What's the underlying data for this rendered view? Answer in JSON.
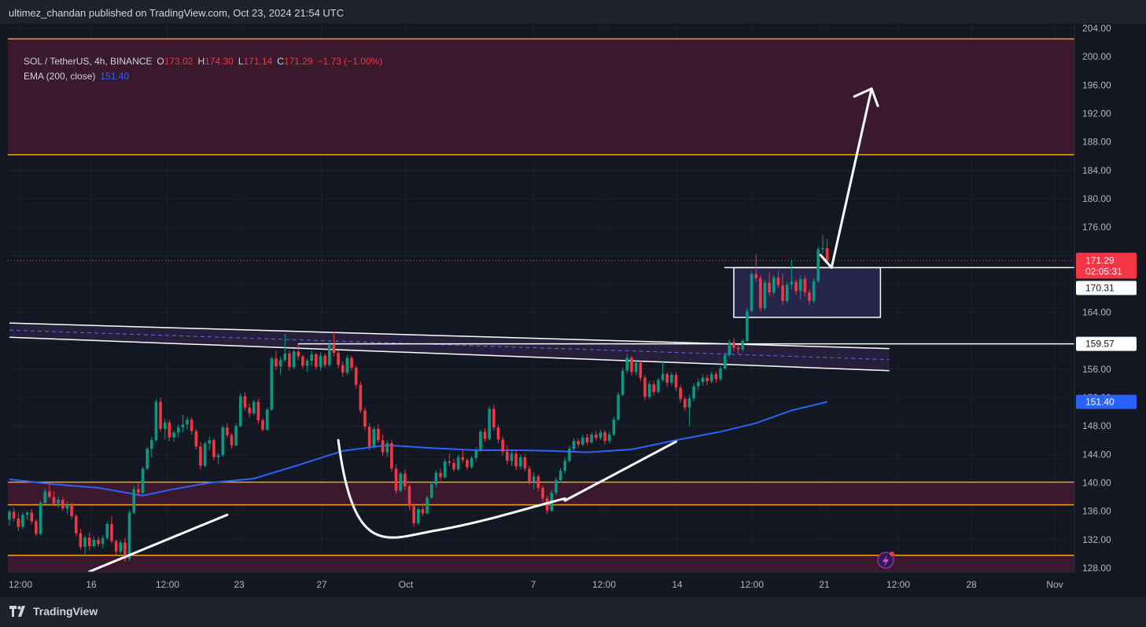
{
  "publisher_line": "ultimez_chandan published on TradingView.com, Oct 23, 2024 21:54 UTC",
  "brand": {
    "name": "TradingView",
    "logo_icon": "tradingview-logo-icon"
  },
  "legend": {
    "symbol": "SOL / TetherUS, 4h, BINANCE",
    "open_label": "O",
    "open": "173.02",
    "high_label": "H",
    "high": "174.30",
    "low_label": "L",
    "low": "171.14",
    "close_label": "C",
    "close": "171.29",
    "change": "−1.73 (−1.00%)",
    "ema_label": "EMA (200, close)",
    "ema_value": "151.40"
  },
  "colors": {
    "background": "#131722",
    "bull": "#089981",
    "bear": "#f23645",
    "ema": "#2962ff",
    "zone_fill": "#42192f",
    "zone_border": "#f7a21b",
    "annotation": "#ffffff"
  },
  "chart_data": {
    "type": "candlestick",
    "y_axis": {
      "min": 128,
      "max": 204,
      "side": "right",
      "ticks": [
        "204.00",
        "200.00",
        "196.00",
        "192.00",
        "188.00",
        "184.00",
        "180.00",
        "176.00",
        "171.29",
        "164.00",
        "160.00",
        "156.00",
        "152.00",
        "148.00",
        "144.00",
        "140.00",
        "136.00",
        "132.00",
        "128.00"
      ]
    },
    "x_axis": {
      "ticks": [
        "12:00",
        "16",
        "12:00",
        "23",
        "27",
        "Oct",
        "7",
        "12:00",
        "14",
        "12:00",
        "21",
        "12:00",
        "28",
        "Nov"
      ]
    },
    "price_labels": [
      {
        "value": 171.29,
        "text": "171.29",
        "subtext": "02:05:31",
        "color": "#f23645",
        "kind": "last-price"
      },
      {
        "value": 170.31,
        "text": "170.31",
        "color": "#ffffff",
        "kind": "line"
      },
      {
        "value": 159.57,
        "text": "159.57",
        "color": "#ffffff",
        "kind": "line"
      },
      {
        "value": 151.4,
        "text": "151.40",
        "color": "#2962ff",
        "kind": "ema"
      }
    ],
    "zones": [
      {
        "from": 186.2,
        "to": 202.5
      },
      {
        "from": 136.9,
        "to": 140.1
      },
      {
        "from": 129.8,
        "to": 127.5
      }
    ],
    "consolidation_box": {
      "from": 163.3,
      "to": 170.3,
      "start_index": 163,
      "end_index": 196
    },
    "horizontal_lines": [
      {
        "value": 170.31,
        "start_index": 163,
        "end_index": 999
      },
      {
        "value": 159.57,
        "start_index": 67,
        "end_index": 999
      }
    ],
    "channel": {
      "upper": {
        "start_index": 0,
        "start": 162.5,
        "end_index": 198,
        "end": 158.9
      },
      "lower": {
        "start_index": 0,
        "start": 160.5,
        "end_index": 198,
        "end": 155.8
      }
    },
    "trendlines": [
      {
        "start_index": 18,
        "start": 127.5,
        "end_index": 49,
        "end": 135.5
      },
      {
        "start_index": 125,
        "start": 137.5,
        "end_index": 150,
        "end": 145.8
      }
    ],
    "target_arrow": {
      "start_index": 185,
      "start": 170.3,
      "end_index": 194,
      "end": 195.5
    },
    "rounding_bottom": {
      "start_index": 74,
      "start": 146.0,
      "low_index": 96,
      "low": 133.3,
      "end_index": 125,
      "end": 137.8
    },
    "ema200": [
      {
        "i": 0,
        "v": 140.5
      },
      {
        "i": 10,
        "v": 139.8
      },
      {
        "i": 20,
        "v": 139.3
      },
      {
        "i": 30,
        "v": 138.2
      },
      {
        "i": 36,
        "v": 139.0
      },
      {
        "i": 45,
        "v": 140.0
      },
      {
        "i": 55,
        "v": 140.6
      },
      {
        "i": 65,
        "v": 142.5
      },
      {
        "i": 75,
        "v": 144.5
      },
      {
        "i": 85,
        "v": 145.3
      },
      {
        "i": 95,
        "v": 144.9
      },
      {
        "i": 105,
        "v": 144.6
      },
      {
        "i": 115,
        "v": 144.6
      },
      {
        "i": 122,
        "v": 144.5
      },
      {
        "i": 130,
        "v": 144.3
      },
      {
        "i": 140,
        "v": 144.7
      },
      {
        "i": 150,
        "v": 146.0
      },
      {
        "i": 160,
        "v": 147.2
      },
      {
        "i": 168,
        "v": 148.4
      },
      {
        "i": 176,
        "v": 150.2
      },
      {
        "i": 184,
        "v": 151.4
      }
    ],
    "candles_ohlc": [
      [
        134.8,
        136.2,
        134.0,
        135.9
      ],
      [
        135.9,
        136.5,
        134.6,
        135.0
      ],
      [
        135.0,
        135.8,
        133.2,
        133.8
      ],
      [
        133.8,
        135.9,
        133.5,
        135.5
      ],
      [
        135.5,
        136.0,
        134.8,
        135.8
      ],
      [
        135.8,
        136.3,
        134.2,
        134.6
      ],
      [
        134.6,
        134.9,
        132.5,
        132.8
      ],
      [
        132.8,
        137.5,
        132.6,
        137.2
      ],
      [
        137.2,
        139.2,
        137.0,
        138.8
      ],
      [
        138.8,
        139.8,
        137.8,
        138.0
      ],
      [
        138.0,
        138.8,
        136.7,
        137.1
      ],
      [
        137.1,
        138.1,
        136.5,
        137.6
      ],
      [
        137.6,
        138.0,
        136.1,
        136.4
      ],
      [
        136.4,
        137.4,
        135.6,
        136.9
      ],
      [
        136.9,
        137.2,
        134.9,
        135.3
      ],
      [
        135.3,
        135.6,
        132.5,
        132.9
      ],
      [
        132.9,
        133.5,
        130.6,
        131.0
      ],
      [
        131.0,
        132.6,
        129.8,
        132.3
      ],
      [
        132.3,
        133.0,
        130.5,
        131.1
      ],
      [
        131.1,
        132.5,
        130.9,
        132.0
      ],
      [
        132.0,
        132.4,
        131.0,
        131.4
      ],
      [
        131.4,
        132.6,
        130.8,
        132.2
      ],
      [
        132.2,
        134.5,
        132.0,
        134.2
      ],
      [
        134.2,
        135.3,
        131.5,
        131.8
      ],
      [
        131.8,
        132.0,
        129.8,
        130.3
      ],
      [
        130.3,
        131.9,
        130.0,
        131.6
      ],
      [
        131.6,
        132.3,
        128.9,
        129.3
      ],
      [
        129.3,
        136.2,
        129.0,
        135.8
      ],
      [
        135.8,
        139.5,
        135.6,
        139.1
      ],
      [
        139.1,
        140.0,
        138.1,
        138.6
      ],
      [
        138.6,
        142.3,
        138.4,
        142.0
      ],
      [
        142.0,
        145.1,
        141.8,
        144.8
      ],
      [
        144.8,
        146.5,
        143.6,
        146.0
      ],
      [
        146.0,
        151.8,
        145.8,
        151.4
      ],
      [
        151.4,
        152.0,
        147.2,
        147.6
      ],
      [
        147.6,
        149.0,
        146.1,
        148.5
      ],
      [
        148.5,
        148.9,
        145.9,
        146.4
      ],
      [
        146.4,
        147.4,
        145.8,
        147.1
      ],
      [
        147.1,
        148.2,
        146.4,
        147.8
      ],
      [
        147.8,
        149.6,
        147.1,
        148.2
      ],
      [
        148.2,
        149.3,
        147.5,
        148.9
      ],
      [
        148.9,
        149.2,
        146.8,
        147.3
      ],
      [
        147.3,
        147.6,
        144.7,
        145.1
      ],
      [
        145.1,
        145.7,
        141.9,
        142.4
      ],
      [
        142.4,
        145.8,
        142.2,
        145.5
      ],
      [
        145.5,
        146.5,
        144.6,
        146.0
      ],
      [
        146.0,
        146.3,
        143.2,
        143.6
      ],
      [
        143.6,
        144.2,
        142.6,
        143.9
      ],
      [
        143.9,
        148.1,
        143.6,
        147.8
      ],
      [
        147.8,
        148.4,
        146.3,
        146.7
      ],
      [
        146.7,
        147.0,
        144.8,
        145.3
      ],
      [
        145.3,
        148.4,
        145.1,
        148.0
      ],
      [
        148.0,
        152.6,
        147.8,
        152.2
      ],
      [
        152.2,
        152.8,
        150.1,
        150.6
      ],
      [
        150.6,
        151.2,
        149.2,
        149.8
      ],
      [
        149.8,
        151.7,
        149.5,
        151.4
      ],
      [
        151.4,
        151.8,
        148.3,
        148.8
      ],
      [
        148.8,
        149.1,
        147.2,
        147.5
      ],
      [
        147.5,
        150.6,
        147.3,
        150.3
      ],
      [
        150.3,
        157.8,
        150.1,
        157.5
      ],
      [
        157.5,
        158.6,
        155.9,
        156.4
      ],
      [
        156.4,
        157.8,
        155.2,
        157.3
      ],
      [
        157.3,
        161.0,
        157.0,
        158.2
      ],
      [
        158.2,
        158.6,
        155.8,
        156.3
      ],
      [
        156.3,
        158.8,
        156.0,
        158.5
      ],
      [
        158.5,
        159.6,
        157.3,
        157.8
      ],
      [
        157.8,
        158.0,
        156.1,
        156.5
      ],
      [
        156.5,
        157.5,
        155.6,
        157.2
      ],
      [
        157.2,
        158.6,
        156.5,
        158.1
      ],
      [
        158.1,
        158.3,
        156.0,
        156.3
      ],
      [
        156.3,
        158.4,
        155.8,
        157.9
      ],
      [
        157.9,
        158.2,
        156.2,
        156.6
      ],
      [
        156.6,
        159.8,
        156.3,
        159.4
      ],
      [
        159.4,
        161.2,
        157.8,
        158.3
      ],
      [
        158.3,
        158.6,
        156.1,
        156.6
      ],
      [
        156.6,
        157.1,
        154.9,
        155.5
      ],
      [
        155.5,
        158.0,
        155.2,
        157.6
      ],
      [
        157.6,
        157.9,
        155.8,
        156.2
      ],
      [
        156.2,
        156.5,
        153.3,
        153.8
      ],
      [
        153.8,
        154.2,
        149.8,
        150.2
      ],
      [
        150.2,
        150.6,
        147.4,
        147.9
      ],
      [
        147.9,
        148.4,
        144.6,
        145.1
      ],
      [
        145.1,
        147.9,
        144.9,
        147.6
      ],
      [
        147.6,
        148.2,
        145.6,
        146.0
      ],
      [
        146.0,
        146.8,
        143.8,
        144.3
      ],
      [
        144.3,
        146.0,
        143.6,
        145.6
      ],
      [
        145.6,
        146.1,
        141.6,
        142.0
      ],
      [
        142.0,
        142.6,
        138.4,
        138.9
      ],
      [
        138.9,
        141.6,
        138.6,
        141.3
      ],
      [
        141.3,
        141.9,
        139.0,
        139.5
      ],
      [
        139.5,
        139.8,
        136.2,
        136.7
      ],
      [
        136.7,
        137.0,
        133.8,
        134.3
      ],
      [
        134.3,
        136.6,
        134.0,
        136.3
      ],
      [
        136.3,
        137.1,
        135.3,
        135.7
      ],
      [
        135.7,
        138.2,
        135.5,
        137.9
      ],
      [
        137.9,
        140.2,
        137.7,
        139.8
      ],
      [
        139.8,
        141.8,
        139.3,
        141.4
      ],
      [
        141.4,
        142.0,
        140.3,
        140.8
      ],
      [
        140.8,
        143.4,
        140.6,
        143.0
      ],
      [
        143.0,
        144.1,
        142.4,
        142.8
      ],
      [
        142.8,
        143.4,
        141.6,
        141.9
      ],
      [
        141.9,
        143.9,
        141.7,
        143.6
      ],
      [
        143.6,
        144.6,
        142.8,
        143.2
      ],
      [
        143.2,
        143.5,
        141.8,
        142.2
      ],
      [
        142.2,
        143.8,
        142.0,
        143.5
      ],
      [
        143.5,
        145.0,
        143.0,
        144.6
      ],
      [
        144.6,
        147.5,
        144.4,
        147.2
      ],
      [
        147.2,
        147.7,
        145.8,
        146.2
      ],
      [
        146.2,
        150.8,
        146.0,
        150.4
      ],
      [
        150.4,
        151.0,
        147.3,
        147.8
      ],
      [
        147.8,
        148.2,
        145.6,
        146.1
      ],
      [
        146.1,
        146.5,
        143.8,
        144.4
      ],
      [
        144.4,
        145.3,
        142.6,
        143.1
      ],
      [
        143.1,
        144.5,
        142.4,
        144.1
      ],
      [
        144.1,
        144.6,
        141.8,
        142.3
      ],
      [
        142.3,
        144.0,
        141.9,
        143.6
      ],
      [
        143.6,
        144.0,
        141.6,
        142.0
      ],
      [
        142.0,
        142.4,
        139.7,
        140.2
      ],
      [
        140.2,
        141.5,
        139.1,
        140.9
      ],
      [
        140.9,
        141.2,
        138.8,
        139.3
      ],
      [
        139.3,
        139.6,
        137.3,
        137.8
      ],
      [
        137.8,
        138.2,
        135.6,
        136.1
      ],
      [
        136.1,
        139.0,
        135.9,
        138.6
      ],
      [
        138.6,
        140.8,
        138.3,
        140.4
      ],
      [
        140.4,
        142.1,
        140.0,
        141.7
      ],
      [
        141.7,
        143.6,
        141.3,
        143.1
      ],
      [
        143.1,
        145.2,
        142.8,
        144.8
      ],
      [
        144.8,
        146.3,
        144.3,
        145.9
      ],
      [
        145.9,
        146.2,
        144.9,
        145.4
      ],
      [
        145.4,
        146.8,
        145.1,
        146.4
      ],
      [
        146.4,
        146.9,
        145.3,
        145.7
      ],
      [
        145.7,
        147.1,
        145.5,
        146.8
      ],
      [
        146.8,
        147.3,
        145.9,
        146.3
      ],
      [
        146.3,
        147.5,
        146.0,
        147.1
      ],
      [
        147.1,
        147.4,
        145.4,
        145.9
      ],
      [
        145.9,
        147.2,
        145.6,
        146.8
      ],
      [
        146.8,
        149.3,
        146.6,
        148.9
      ],
      [
        148.9,
        152.8,
        148.7,
        152.4
      ],
      [
        152.4,
        156.2,
        152.2,
        155.8
      ],
      [
        155.8,
        158.2,
        155.4,
        157.6
      ],
      [
        157.6,
        157.9,
        155.1,
        155.6
      ],
      [
        155.6,
        157.3,
        155.2,
        156.9
      ],
      [
        156.9,
        157.3,
        154.3,
        154.8
      ],
      [
        154.8,
        155.2,
        151.6,
        152.1
      ],
      [
        152.1,
        154.3,
        151.8,
        153.9
      ],
      [
        153.9,
        154.4,
        152.3,
        152.8
      ],
      [
        152.8,
        154.8,
        152.6,
        154.5
      ],
      [
        154.5,
        157.2,
        154.2,
        155.3
      ],
      [
        155.3,
        155.6,
        153.5,
        154.1
      ],
      [
        154.1,
        155.6,
        153.7,
        155.2
      ],
      [
        155.2,
        155.6,
        152.9,
        153.4
      ],
      [
        153.4,
        153.8,
        151.3,
        151.8
      ],
      [
        151.8,
        152.2,
        150.1,
        150.6
      ],
      [
        150.6,
        152.4,
        148.0,
        151.9
      ],
      [
        151.9,
        154.0,
        151.5,
        153.6
      ],
      [
        153.6,
        154.7,
        152.9,
        154.2
      ],
      [
        154.2,
        155.3,
        153.7,
        154.8
      ],
      [
        154.8,
        155.2,
        153.8,
        154.3
      ],
      [
        154.3,
        155.6,
        154.0,
        155.3
      ],
      [
        155.3,
        155.7,
        154.1,
        154.6
      ],
      [
        154.6,
        156.5,
        154.3,
        156.1
      ],
      [
        156.1,
        158.4,
        155.9,
        158.0
      ],
      [
        158.0,
        160.2,
        157.7,
        159.8
      ],
      [
        159.8,
        160.4,
        158.5,
        159.0
      ],
      [
        159.0,
        159.5,
        158.2,
        158.8
      ],
      [
        158.8,
        160.3,
        158.5,
        160.0
      ],
      [
        160.0,
        164.6,
        159.8,
        164.2
      ],
      [
        164.2,
        169.8,
        164.0,
        169.4
      ],
      [
        169.4,
        172.2,
        168.3,
        168.8
      ],
      [
        168.8,
        169.2,
        164.1,
        164.6
      ],
      [
        164.6,
        168.6,
        164.3,
        168.2
      ],
      [
        168.2,
        169.6,
        166.3,
        166.8
      ],
      [
        166.8,
        169.3,
        166.5,
        168.9
      ],
      [
        168.9,
        169.8,
        167.4,
        167.8
      ],
      [
        167.8,
        169.4,
        165.1,
        165.6
      ],
      [
        165.6,
        168.3,
        165.3,
        167.9
      ],
      [
        167.9,
        171.4,
        167.2,
        168.3
      ],
      [
        168.3,
        168.6,
        166.5,
        167.0
      ],
      [
        167.0,
        169.2,
        165.8,
        168.7
      ],
      [
        168.7,
        169.2,
        166.3,
        166.8
      ],
      [
        166.8,
        167.2,
        165.1,
        165.6
      ],
      [
        165.6,
        168.8,
        165.3,
        168.4
      ],
      [
        168.4,
        173.2,
        168.1,
        172.9
      ],
      [
        172.9,
        174.9,
        172.2,
        173.02
      ],
      [
        173.02,
        174.3,
        171.14,
        171.29
      ]
    ]
  }
}
